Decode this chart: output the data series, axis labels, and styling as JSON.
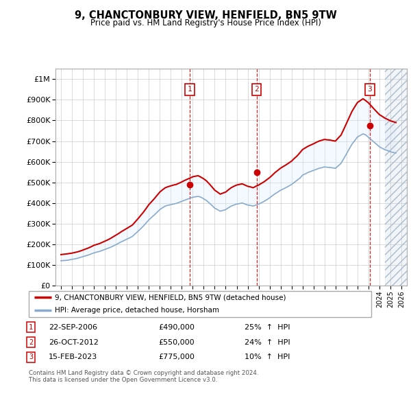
{
  "title": "9, CHANCTONBURY VIEW, HENFIELD, BN5 9TW",
  "subtitle": "Price paid vs. HM Land Registry's House Price Index (HPI)",
  "legend_label_red": "9, CHANCTONBURY VIEW, HENFIELD, BN5 9TW (detached house)",
  "legend_label_blue": "HPI: Average price, detached house, Horsham",
  "footer_line1": "Contains HM Land Registry data © Crown copyright and database right 2024.",
  "footer_line2": "This data is licensed under the Open Government Licence v3.0.",
  "transactions": [
    {
      "num": 1,
      "date": "22-SEP-2006",
      "price": 490000,
      "pct": "25%",
      "dir": "↑",
      "ref": "HPI"
    },
    {
      "num": 2,
      "date": "26-OCT-2012",
      "price": 550000,
      "pct": "24%",
      "dir": "↑",
      "ref": "HPI"
    },
    {
      "num": 3,
      "date": "15-FEB-2023",
      "price": 775000,
      "pct": "10%",
      "dir": "↑",
      "ref": "HPI"
    }
  ],
  "sale_dates": [
    2006.728,
    2012.819,
    2023.121
  ],
  "sale_prices": [
    490000,
    550000,
    775000
  ],
  "hpi_years": [
    1995.0,
    1995.25,
    1995.5,
    1995.75,
    1996.0,
    1996.25,
    1996.5,
    1996.75,
    1997.0,
    1997.25,
    1997.5,
    1997.75,
    1998.0,
    1998.25,
    1998.5,
    1998.75,
    1999.0,
    1999.25,
    1999.5,
    1999.75,
    2000.0,
    2000.25,
    2000.5,
    2000.75,
    2001.0,
    2001.25,
    2001.5,
    2001.75,
    2002.0,
    2002.25,
    2002.5,
    2002.75,
    2003.0,
    2003.25,
    2003.5,
    2003.75,
    2004.0,
    2004.25,
    2004.5,
    2004.75,
    2005.0,
    2005.25,
    2005.5,
    2005.75,
    2006.0,
    2006.25,
    2006.5,
    2006.75,
    2007.0,
    2007.25,
    2007.5,
    2007.75,
    2008.0,
    2008.25,
    2008.5,
    2008.75,
    2009.0,
    2009.25,
    2009.5,
    2009.75,
    2010.0,
    2010.25,
    2010.5,
    2010.75,
    2011.0,
    2011.25,
    2011.5,
    2011.75,
    2012.0,
    2012.25,
    2012.5,
    2012.75,
    2013.0,
    2013.25,
    2013.5,
    2013.75,
    2014.0,
    2014.25,
    2014.5,
    2014.75,
    2015.0,
    2015.25,
    2015.5,
    2015.75,
    2016.0,
    2016.25,
    2016.5,
    2016.75,
    2017.0,
    2017.25,
    2017.5,
    2017.75,
    2018.0,
    2018.25,
    2018.5,
    2018.75,
    2019.0,
    2019.25,
    2019.5,
    2019.75,
    2020.0,
    2020.25,
    2020.5,
    2020.75,
    2021.0,
    2021.25,
    2021.5,
    2021.75,
    2022.0,
    2022.25,
    2022.5,
    2022.75,
    2023.0,
    2023.25,
    2023.5,
    2023.75,
    2024.0,
    2024.25,
    2024.5,
    2024.75,
    2025.0,
    2025.25,
    2025.5
  ],
  "hpi_values": [
    120000,
    121000,
    122000,
    124000,
    127000,
    129000,
    132000,
    136000,
    140000,
    144000,
    148000,
    153000,
    158000,
    162000,
    165000,
    170000,
    175000,
    180000,
    185000,
    191000,
    198000,
    205000,
    212000,
    218000,
    225000,
    231000,
    238000,
    250000,
    262000,
    275000,
    288000,
    303000,
    318000,
    330000,
    342000,
    355000,
    368000,
    377000,
    385000,
    389000,
    392000,
    395000,
    398000,
    403000,
    408000,
    413000,
    418000,
    423000,
    428000,
    430000,
    432000,
    428000,
    420000,
    412000,
    400000,
    388000,
    375000,
    368000,
    360000,
    364000,
    368000,
    377000,
    385000,
    390000,
    395000,
    397000,
    400000,
    395000,
    390000,
    388000,
    385000,
    390000,
    395000,
    401000,
    408000,
    416000,
    425000,
    435000,
    445000,
    453000,
    462000,
    468000,
    475000,
    482000,
    490000,
    500000,
    510000,
    520000,
    535000,
    541000,
    548000,
    553000,
    558000,
    563000,
    568000,
    571000,
    575000,
    573000,
    572000,
    570000,
    568000,
    580000,
    592000,
    615000,
    638000,
    662000,
    685000,
    702000,
    720000,
    727000,
    735000,
    730000,
    718000,
    707000,
    695000,
    684000,
    672000,
    665000,
    658000,
    654000,
    648000,
    645000,
    642000
  ],
  "property_hpi_values": [
    150000,
    151500,
    153000,
    155000,
    157000,
    160000,
    163000,
    167000,
    172000,
    177000,
    182000,
    188000,
    195000,
    199000,
    203000,
    209000,
    215000,
    221000,
    228000,
    236000,
    244000,
    252000,
    261000,
    269000,
    277000,
    285000,
    293000,
    308000,
    323000,
    339000,
    355000,
    373000,
    392000,
    406000,
    421000,
    437000,
    453000,
    464000,
    474000,
    479000,
    483000,
    487000,
    490000,
    496000,
    502000,
    509000,
    515000,
    521000,
    527000,
    530000,
    532000,
    525000,
    517000,
    507000,
    493000,
    478000,
    462000,
    453000,
    443000,
    448000,
    453000,
    464000,
    474000,
    481000,
    487000,
    490000,
    493000,
    487000,
    481000,
    478000,
    474000,
    481000,
    487000,
    495000,
    503000,
    513000,
    523000,
    535000,
    548000,
    558000,
    569000,
    577000,
    585000,
    594000,
    603000,
    616000,
    628000,
    643000,
    659000,
    667000,
    675000,
    681000,
    687000,
    694000,
    700000,
    704000,
    708000,
    706000,
    705000,
    702000,
    700000,
    715000,
    729000,
    757000,
    786000,
    815000,
    844000,
    866000,
    887000,
    896000,
    905000,
    896000,
    885000,
    871000,
    856000,
    842000,
    828000,
    820000,
    811000,
    805000,
    798000,
    794000,
    790000
  ],
  "xlim": [
    1994.5,
    2026.5
  ],
  "ylim": [
    0,
    1050000
  ],
  "yticks": [
    0,
    100000,
    200000,
    300000,
    400000,
    500000,
    600000,
    700000,
    800000,
    900000,
    1000000
  ],
  "ytick_labels": [
    "£0",
    "£100K",
    "£200K",
    "£300K",
    "£400K",
    "£500K",
    "£600K",
    "£700K",
    "£800K",
    "£900K",
    "£1M"
  ],
  "xticks": [
    1995,
    1996,
    1997,
    1998,
    1999,
    2000,
    2001,
    2002,
    2003,
    2004,
    2005,
    2006,
    2007,
    2008,
    2009,
    2010,
    2011,
    2012,
    2013,
    2014,
    2015,
    2016,
    2017,
    2018,
    2019,
    2020,
    2021,
    2022,
    2023,
    2024,
    2025,
    2026
  ],
  "vline_dates": [
    2006.728,
    2012.819,
    2023.121
  ],
  "vline_color": "#cc0000",
  "hpi_color": "#88aacc",
  "property_color": "#cc0000",
  "shade_color": "#ddeeff",
  "grid_color": "#cccccc",
  "hatch_end": 2026.5,
  "hatch_start": 2024.5
}
